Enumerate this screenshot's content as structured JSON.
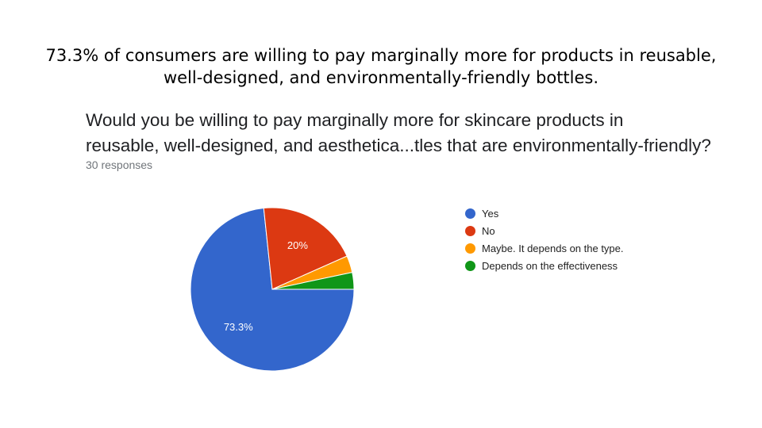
{
  "slide": {
    "title_lines": [
      "73.3% of consumers are willing to pay marginally more for products in reusable,",
      "well-designed, and environmentally-friendly bottles."
    ]
  },
  "form": {
    "question_lines": [
      "Would you be willing to pay marginally more for skincare products in",
      "reusable, well-designed, and aesthetica...tles that are environmentally-friendly?"
    ],
    "responses": "30 responses"
  },
  "chart_data": {
    "type": "pie",
    "start_angle_deg": 0,
    "direction": "clockwise",
    "legend_position": "right",
    "slices": [
      {
        "label": "Yes",
        "value": 22,
        "percent_label": "73.3%",
        "color": "#3366cc"
      },
      {
        "label": "No",
        "value": 6,
        "percent_label": "20%",
        "color": "#dc3912"
      },
      {
        "label": "Maybe. It depends on the type.",
        "value": 1,
        "percent_label": "",
        "color": "#ff9900"
      },
      {
        "label": "Depends on the effectiveness",
        "value": 1,
        "percent_label": "",
        "color": "#109618"
      }
    ]
  }
}
